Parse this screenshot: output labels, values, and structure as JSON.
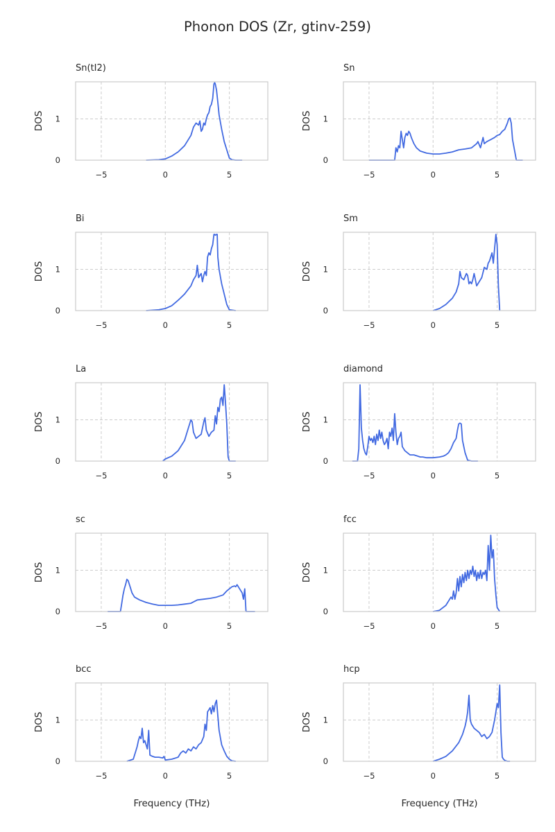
{
  "figure": {
    "title": "Phonon DOS (Zr, gtinv-259)"
  },
  "chart_data": [
    {
      "type": "line",
      "title": "Sn(tI2)",
      "ylabel": "DOS",
      "xlabel": "",
      "xlim": [
        -7,
        8
      ],
      "ylim": [
        0,
        1.9
      ],
      "xticks": [
        -5,
        0,
        5
      ],
      "yticks": [
        0,
        1
      ],
      "grid": true,
      "series": [
        {
          "x": [
            -1.5,
            -0.5,
            0,
            0.5,
            1,
            1.5,
            2,
            2.2,
            2.4,
            2.6,
            2.7,
            2.8,
            2.9,
            3.0,
            3.1,
            3.2,
            3.3,
            3.4,
            3.5,
            3.6,
            3.7,
            3.8,
            3.85,
            3.9,
            4.0,
            4.1,
            4.2,
            4.4,
            4.6,
            4.8,
            5.0,
            5.2,
            5.5,
            6.0
          ],
          "y": [
            0,
            0.01,
            0.03,
            0.1,
            0.2,
            0.35,
            0.6,
            0.8,
            0.9,
            0.85,
            0.95,
            0.7,
            0.75,
            0.9,
            0.85,
            1.0,
            1.1,
            1.15,
            1.3,
            1.35,
            1.5,
            1.85,
            1.88,
            1.85,
            1.7,
            1.4,
            1.1,
            0.75,
            0.45,
            0.25,
            0.05,
            0.01,
            0,
            0
          ]
        }
      ]
    },
    {
      "type": "line",
      "title": "Sn",
      "ylabel": "DOS",
      "xlabel": "",
      "xlim": [
        -7,
        8
      ],
      "ylim": [
        0,
        1.9
      ],
      "xticks": [
        -5,
        0,
        5
      ],
      "yticks": [
        0,
        1
      ],
      "grid": true,
      "series": [
        {
          "x": [
            -5,
            -3,
            -2.9,
            -2.8,
            -2.7,
            -2.6,
            -2.5,
            -2.4,
            -2.3,
            -2.2,
            -2.1,
            -2.0,
            -1.9,
            -1.8,
            -1.7,
            -1.5,
            -1.3,
            -1.0,
            -0.5,
            0,
            0.5,
            1,
            1.5,
            2,
            2.5,
            3,
            3.2,
            3.4,
            3.5,
            3.7,
            3.9,
            4.0,
            4.2,
            4.5,
            4.8,
            5.0,
            5.2,
            5.4,
            5.6,
            5.8,
            5.9,
            6.0,
            6.1,
            6.2,
            6.5,
            7.0
          ],
          "y": [
            0,
            0,
            0.3,
            0.2,
            0.35,
            0.3,
            0.7,
            0.5,
            0.3,
            0.55,
            0.65,
            0.6,
            0.7,
            0.65,
            0.55,
            0.4,
            0.3,
            0.22,
            0.17,
            0.15,
            0.15,
            0.17,
            0.2,
            0.25,
            0.27,
            0.3,
            0.35,
            0.4,
            0.45,
            0.3,
            0.55,
            0.4,
            0.45,
            0.5,
            0.55,
            0.6,
            0.62,
            0.7,
            0.75,
            0.9,
            1.0,
            1.02,
            0.9,
            0.5,
            0,
            0
          ]
        }
      ]
    },
    {
      "type": "line",
      "title": "Bi",
      "ylabel": "DOS",
      "xlabel": "",
      "xlim": [
        -7,
        8
      ],
      "ylim": [
        0,
        1.9
      ],
      "xticks": [
        -5,
        0,
        5
      ],
      "yticks": [
        0,
        1
      ],
      "grid": true,
      "series": [
        {
          "x": [
            -1.5,
            -0.5,
            0,
            0.5,
            1,
            1.5,
            2,
            2.2,
            2.4,
            2.5,
            2.6,
            2.7,
            2.8,
            2.9,
            3.0,
            3.1,
            3.2,
            3.3,
            3.4,
            3.5,
            3.6,
            3.7,
            3.8,
            3.85,
            3.9,
            4.0,
            4.05,
            4.1,
            4.2,
            4.4,
            4.6,
            4.8,
            5.0,
            5.5
          ],
          "y": [
            0,
            0.02,
            0.05,
            0.12,
            0.25,
            0.4,
            0.6,
            0.75,
            0.85,
            1.1,
            0.8,
            0.85,
            0.9,
            0.7,
            0.85,
            0.95,
            0.85,
            1.3,
            1.4,
            1.35,
            1.5,
            1.6,
            1.85,
            1.85,
            1.83,
            1.85,
            1.85,
            1.3,
            1.0,
            0.65,
            0.4,
            0.15,
            0.02,
            0
          ]
        }
      ]
    },
    {
      "type": "line",
      "title": "Sm",
      "ylabel": "DOS",
      "xlabel": "",
      "xlim": [
        -7,
        8
      ],
      "ylim": [
        0,
        1.9
      ],
      "xticks": [
        -5,
        0,
        5
      ],
      "yticks": [
        0,
        1
      ],
      "grid": true,
      "series": [
        {
          "x": [
            0,
            0.5,
            1,
            1.5,
            1.8,
            2.0,
            2.1,
            2.2,
            2.4,
            2.6,
            2.7,
            2.8,
            2.9,
            3.0,
            3.1,
            3.2,
            3.4,
            3.6,
            3.8,
            4.0,
            4.2,
            4.3,
            4.4,
            4.5,
            4.6,
            4.7,
            4.8,
            4.9,
            5.0,
            5.1,
            5.2
          ],
          "y": [
            0,
            0.05,
            0.15,
            0.3,
            0.45,
            0.65,
            0.95,
            0.8,
            0.75,
            0.9,
            0.85,
            0.65,
            0.7,
            0.65,
            0.75,
            0.9,
            0.6,
            0.7,
            0.8,
            1.05,
            1.0,
            1.15,
            1.2,
            1.3,
            1.4,
            1.15,
            1.5,
            1.85,
            1.6,
            0.6,
            0
          ]
        }
      ]
    },
    {
      "type": "line",
      "title": "La",
      "ylabel": "DOS",
      "xlabel": "",
      "xlim": [
        -7,
        8
      ],
      "ylim": [
        0,
        1.9
      ],
      "xticks": [
        -5,
        0,
        5
      ],
      "yticks": [
        0,
        1
      ],
      "grid": true,
      "series": [
        {
          "x": [
            -0.2,
            0,
            0.5,
            1,
            1.5,
            1.8,
            2.0,
            2.1,
            2.2,
            2.4,
            2.6,
            2.8,
            3.0,
            3.1,
            3.2,
            3.4,
            3.6,
            3.8,
            3.9,
            4.0,
            4.1,
            4.2,
            4.3,
            4.4,
            4.5,
            4.6,
            4.7,
            4.8,
            4.9,
            5.0,
            5.5
          ],
          "y": [
            0,
            0.05,
            0.12,
            0.25,
            0.5,
            0.8,
            1.0,
            0.95,
            0.7,
            0.55,
            0.6,
            0.65,
            0.95,
            1.05,
            0.75,
            0.6,
            0.7,
            0.75,
            1.1,
            0.9,
            1.3,
            1.2,
            1.5,
            1.55,
            1.35,
            1.85,
            1.4,
            0.9,
            0.1,
            0,
            0
          ]
        }
      ]
    },
    {
      "type": "line",
      "title": "diamond",
      "ylabel": "DOS",
      "xlabel": "",
      "xlim": [
        -7,
        8
      ],
      "ylim": [
        0,
        1.9
      ],
      "xticks": [
        -5,
        0,
        5
      ],
      "yticks": [
        0,
        1
      ],
      "grid": true,
      "series": [
        {
          "x": [
            -6.3,
            -5.9,
            -5.8,
            -5.7,
            -5.6,
            -5.5,
            -5.4,
            -5.3,
            -5.2,
            -5.1,
            -5.0,
            -4.9,
            -4.8,
            -4.7,
            -4.6,
            -4.5,
            -4.4,
            -4.3,
            -4.2,
            -4.1,
            -4.0,
            -3.9,
            -3.8,
            -3.7,
            -3.6,
            -3.5,
            -3.4,
            -3.3,
            -3.2,
            -3.1,
            -3.0,
            -2.9,
            -2.8,
            -2.7,
            -2.6,
            -2.5,
            -2.4,
            -2.3,
            -2.2,
            -2.0,
            -1.8,
            -1.5,
            -1.2,
            -1.0,
            -0.8,
            -0.5,
            0,
            0.5,
            0.8,
            1.0,
            1.2,
            1.4,
            1.6,
            1.7,
            1.8,
            1.9,
            2.0,
            2.1,
            2.2,
            2.3,
            2.5,
            2.7,
            3.0,
            3.5
          ],
          "y": [
            0,
            0,
            0.3,
            1.85,
            0.8,
            0.5,
            0.3,
            0.2,
            0.15,
            0.35,
            0.6,
            0.5,
            0.55,
            0.45,
            0.6,
            0.4,
            0.65,
            0.5,
            0.75,
            0.55,
            0.7,
            0.5,
            0.4,
            0.45,
            0.55,
            0.3,
            0.7,
            0.6,
            0.8,
            0.5,
            1.15,
            0.7,
            0.4,
            0.55,
            0.6,
            0.7,
            0.35,
            0.3,
            0.25,
            0.2,
            0.15,
            0.15,
            0.12,
            0.1,
            0.1,
            0.08,
            0.08,
            0.1,
            0.12,
            0.15,
            0.2,
            0.3,
            0.45,
            0.5,
            0.55,
            0.75,
            0.9,
            0.92,
            0.9,
            0.5,
            0.2,
            0.02,
            0,
            0
          ]
        }
      ]
    },
    {
      "type": "line",
      "title": "sc",
      "ylabel": "DOS",
      "xlabel": "",
      "xlim": [
        -7,
        8
      ],
      "ylim": [
        0,
        1.9
      ],
      "xticks": [
        -5,
        0,
        5
      ],
      "yticks": [
        0,
        1
      ],
      "grid": true,
      "series": [
        {
          "x": [
            -4.5,
            -3.5,
            -3.4,
            -3.3,
            -3.2,
            -3.1,
            -3.0,
            -2.9,
            -2.8,
            -2.6,
            -2.4,
            -2.0,
            -1.5,
            -1.0,
            -0.5,
            0,
            0.5,
            1,
            1.5,
            2.0,
            2.5,
            3.0,
            3.5,
            4.0,
            4.5,
            4.8,
            5.0,
            5.2,
            5.4,
            5.5,
            5.6,
            5.8,
            6.0,
            6.1,
            6.2,
            6.3,
            6.5,
            7.0
          ],
          "y": [
            0,
            0,
            0.2,
            0.4,
            0.55,
            0.65,
            0.78,
            0.75,
            0.65,
            0.45,
            0.35,
            0.28,
            0.22,
            0.18,
            0.15,
            0.15,
            0.15,
            0.16,
            0.18,
            0.2,
            0.28,
            0.3,
            0.32,
            0.35,
            0.4,
            0.5,
            0.55,
            0.6,
            0.62,
            0.6,
            0.65,
            0.55,
            0.45,
            0.3,
            0.55,
            0,
            0,
            0
          ]
        }
      ]
    },
    {
      "type": "line",
      "title": "fcc",
      "ylabel": "DOS",
      "xlabel": "",
      "xlim": [
        -7,
        8
      ],
      "ylim": [
        0,
        1.9
      ],
      "xticks": [
        -5,
        0,
        5
      ],
      "yticks": [
        0,
        1
      ],
      "grid": true,
      "series": [
        {
          "x": [
            0,
            0.5,
            1.0,
            1.2,
            1.4,
            1.5,
            1.6,
            1.7,
            1.8,
            1.9,
            2.0,
            2.1,
            2.2,
            2.3,
            2.4,
            2.5,
            2.6,
            2.7,
            2.8,
            2.9,
            3.0,
            3.1,
            3.2,
            3.3,
            3.4,
            3.5,
            3.6,
            3.7,
            3.8,
            3.9,
            4.0,
            4.1,
            4.2,
            4.3,
            4.4,
            4.5,
            4.6,
            4.7,
            4.8,
            4.9,
            5.0,
            5.2
          ],
          "y": [
            0,
            0.03,
            0.15,
            0.25,
            0.35,
            0.3,
            0.5,
            0.3,
            0.45,
            0.8,
            0.5,
            0.85,
            0.6,
            0.9,
            0.7,
            0.95,
            0.75,
            1.0,
            0.8,
            1.0,
            0.9,
            1.1,
            0.85,
            1.0,
            0.75,
            0.95,
            0.8,
            1.0,
            0.8,
            0.95,
            0.9,
            1.0,
            0.75,
            1.6,
            1.0,
            1.85,
            1.3,
            1.5,
            0.8,
            0.4,
            0.1,
            0
          ]
        }
      ]
    },
    {
      "type": "line",
      "title": "bcc",
      "ylabel": "DOS",
      "xlabel": "Frequency (THz)",
      "xlim": [
        -7,
        8
      ],
      "ylim": [
        0,
        1.9
      ],
      "xticks": [
        -5,
        0,
        5
      ],
      "yticks": [
        0,
        1
      ],
      "grid": true,
      "series": [
        {
          "x": [
            -3.0,
            -2.5,
            -2.3,
            -2.2,
            -2.1,
            -2.0,
            -1.9,
            -1.8,
            -1.7,
            -1.6,
            -1.5,
            -1.4,
            -1.3,
            -1.2,
            -1.0,
            -0.8,
            -0.5,
            -0.2,
            -0.1,
            0,
            0.5,
            1.0,
            1.2,
            1.4,
            1.6,
            1.8,
            2.0,
            2.2,
            2.4,
            2.6,
            2.8,
            3.0,
            3.1,
            3.2,
            3.3,
            3.4,
            3.5,
            3.6,
            3.7,
            3.8,
            3.9,
            4.0,
            4.1,
            4.2,
            4.4,
            4.6,
            4.8,
            5.0,
            5.2,
            5.5
          ],
          "y": [
            0,
            0.05,
            0.25,
            0.35,
            0.5,
            0.6,
            0.55,
            0.8,
            0.45,
            0.5,
            0.4,
            0.3,
            0.75,
            0.15,
            0.12,
            0.1,
            0.1,
            0.08,
            0.12,
            0.03,
            0.05,
            0.1,
            0.2,
            0.25,
            0.2,
            0.3,
            0.25,
            0.35,
            0.3,
            0.4,
            0.45,
            0.6,
            0.9,
            0.75,
            1.2,
            1.25,
            1.3,
            1.15,
            1.35,
            1.2,
            1.4,
            1.48,
            1.1,
            0.75,
            0.4,
            0.25,
            0.12,
            0.05,
            0.01,
            0
          ]
        }
      ]
    },
    {
      "type": "line",
      "title": "hcp",
      "ylabel": "DOS",
      "xlabel": "Frequency (THz)",
      "xlim": [
        -7,
        8
      ],
      "ylim": [
        0,
        1.9
      ],
      "xticks": [
        -5,
        0,
        5
      ],
      "yticks": [
        0,
        1
      ],
      "grid": true,
      "series": [
        {
          "x": [
            0,
            0.5,
            1.0,
            1.5,
            2.0,
            2.3,
            2.5,
            2.6,
            2.7,
            2.8,
            2.9,
            3.0,
            3.2,
            3.4,
            3.6,
            3.8,
            4.0,
            4.2,
            4.4,
            4.6,
            4.8,
            4.9,
            5.0,
            5.1,
            5.2,
            5.3,
            5.4,
            5.5,
            5.6,
            5.8,
            6.0
          ],
          "y": [
            0,
            0.05,
            0.12,
            0.25,
            0.45,
            0.65,
            0.85,
            1.0,
            1.2,
            1.6,
            1.0,
            0.9,
            0.8,
            0.75,
            0.7,
            0.6,
            0.65,
            0.55,
            0.6,
            0.7,
            1.0,
            1.2,
            1.4,
            1.3,
            1.85,
            0.7,
            0.1,
            0.05,
            0.02,
            0,
            0
          ]
        }
      ]
    }
  ]
}
